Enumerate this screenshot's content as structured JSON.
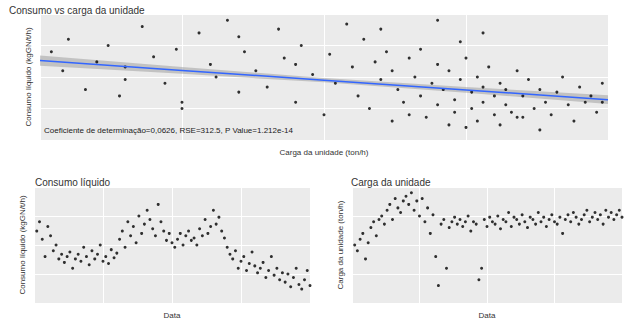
{
  "chart_data": [
    {
      "type": "scatter",
      "title": "Consumo vs carga da unidade",
      "x_label": "Carga da unidade (ton/h)",
      "y_label": "Consumo líquido (kgGN/t/h)",
      "annotation": "Coeficiente de determinação=0,0626, RSE=312.5, P Value=1.212e-14",
      "x": [
        2,
        4,
        5,
        8,
        10,
        12,
        14,
        15,
        18,
        20,
        22,
        24,
        25,
        28,
        30,
        31,
        33,
        35,
        36,
        38,
        40,
        42,
        43,
        45,
        46,
        48,
        50,
        51,
        52,
        54,
        55,
        56,
        57,
        58,
        59,
        60,
        61,
        62,
        62,
        63,
        64,
        65,
        65,
        66,
        67,
        67,
        68,
        69,
        70,
        70,
        71,
        72,
        72,
        73,
        73,
        74,
        75,
        75,
        76,
        76,
        77,
        77,
        78,
        78,
        79,
        80,
        80,
        81,
        81,
        82,
        82,
        83,
        84,
        84,
        85,
        86,
        87,
        88,
        89,
        90,
        91,
        92,
        93,
        94,
        95,
        96,
        97,
        98,
        99,
        99,
        15,
        25,
        35,
        45,
        60,
        70,
        74,
        78,
        85,
        88
      ],
      "values": [
        70,
        55,
        80,
        40,
        62,
        75,
        35,
        58,
        90,
        66,
        45,
        72,
        30,
        85,
        60,
        50,
        95,
        38,
        70,
        55,
        42,
        88,
        65,
        30,
        75,
        52,
        20,
        68,
        45,
        92,
        58,
        35,
        80,
        25,
        62,
        48,
        70,
        15,
        55,
        40,
        30,
        65,
        20,
        50,
        35,
        72,
        18,
        45,
        28,
        60,
        40,
        12,
        55,
        32,
        22,
        48,
        65,
        10,
        38,
        25,
        50,
        15,
        42,
        30,
        58,
        20,
        35,
        45,
        12,
        28,
        40,
        22,
        55,
        18,
        35,
        48,
        25,
        40,
        30,
        20,
        38,
        50,
        28,
        15,
        42,
        30,
        35,
        22,
        45,
        30,
        48,
        25,
        82,
        60,
        88,
        95,
        78,
        85,
        18,
        8
      ],
      "color": "#000000",
      "marker": "circle",
      "fit": {
        "x": [
          0,
          25,
          50,
          75,
          100
        ],
        "values": [
          63,
          55.25,
          47.5,
          39.75,
          32
        ],
        "lower": [
          59,
          52.5,
          45.8,
          37.5,
          28.5
        ],
        "upper": [
          67,
          58,
          49.2,
          42,
          35.5
        ],
        "color": "#3366ff",
        "band_color": "#999999"
      },
      "xlim": [
        0,
        100
      ],
      "ylim": [
        0,
        100
      ],
      "xticks": [
        0,
        25,
        50,
        75,
        100
      ],
      "yticks": [
        0,
        25,
        50,
        75,
        100
      ],
      "grid": true,
      "tick_labels": false
    },
    {
      "type": "scatter",
      "title": "Consumo líquido",
      "x_label": "Data",
      "y_label": "Consumo líquido (kgGN/t/h)",
      "x": [
        1,
        2,
        3,
        4,
        5,
        6,
        7,
        8,
        9,
        10,
        11,
        12,
        13,
        14,
        15,
        16,
        17,
        18,
        19,
        20,
        21,
        22,
        23,
        24,
        25,
        26,
        27,
        28,
        29,
        30,
        31,
        32,
        33,
        34,
        35,
        36,
        37,
        38,
        39,
        40,
        41,
        42,
        43,
        44,
        45,
        46,
        47,
        48,
        49,
        50,
        51,
        52,
        53,
        54,
        55,
        56,
        57,
        58,
        59,
        60,
        61,
        62,
        63,
        64,
        65,
        66,
        67,
        68,
        69,
        70,
        71,
        72,
        73,
        74,
        75,
        76,
        77,
        78,
        79,
        80,
        81,
        82,
        83,
        84,
        85,
        86,
        87,
        88,
        89,
        90,
        91,
        92,
        93,
        94,
        95,
        96,
        97,
        98,
        99,
        100
      ],
      "values": [
        62,
        70,
        55,
        40,
        66,
        58,
        45,
        50,
        38,
        42,
        35,
        40,
        44,
        30,
        38,
        42,
        36,
        48,
        40,
        33,
        45,
        38,
        42,
        50,
        36,
        40,
        34,
        46,
        39,
        43,
        55,
        62,
        48,
        70,
        58,
        66,
        52,
        75,
        60,
        68,
        80,
        72,
        64,
        58,
        85,
        70,
        62,
        54,
        60,
        52,
        48,
        55,
        60,
        50,
        58,
        62,
        54,
        56,
        50,
        64,
        58,
        72,
        60,
        66,
        80,
        68,
        74,
        62,
        56,
        48,
        42,
        38,
        45,
        30,
        36,
        40,
        28,
        34,
        44,
        32,
        26,
        30,
        35,
        22,
        28,
        40,
        24,
        30,
        20,
        26,
        18,
        25,
        14,
        22,
        30,
        16,
        12,
        20,
        28,
        15
      ],
      "color": "#000000",
      "marker": "circle",
      "xlim": [
        0,
        100
      ],
      "ylim": [
        0,
        100
      ],
      "xticks": [
        0,
        25,
        50,
        75,
        100
      ],
      "yticks": [
        0,
        25,
        50,
        75,
        100
      ],
      "grid": true,
      "tick_labels": false
    },
    {
      "type": "scatter",
      "title": "Carga da unidade",
      "x_label": "Data",
      "y_label": "Carga da unidade (ton/h)",
      "x": [
        1,
        2,
        3,
        4,
        5,
        6,
        7,
        8,
        9,
        10,
        11,
        12,
        13,
        14,
        15,
        16,
        17,
        18,
        19,
        20,
        21,
        22,
        23,
        24,
        25,
        26,
        27,
        28,
        29,
        30,
        31,
        32,
        33,
        34,
        35,
        36,
        37,
        38,
        39,
        40,
        41,
        42,
        43,
        44,
        45,
        46,
        47,
        48,
        49,
        50,
        51,
        52,
        53,
        54,
        55,
        56,
        57,
        58,
        59,
        60,
        61,
        62,
        63,
        64,
        65,
        66,
        67,
        68,
        69,
        70,
        71,
        72,
        73,
        74,
        75,
        76,
        77,
        78,
        79,
        80,
        81,
        82,
        83,
        84,
        85,
        86,
        87,
        88,
        89,
        90,
        91,
        92,
        93,
        94,
        95,
        96,
        97,
        98,
        99,
        100
      ],
      "values": [
        50,
        45,
        55,
        60,
        38,
        52,
        65,
        70,
        58,
        72,
        75,
        68,
        80,
        85,
        72,
        90,
        82,
        78,
        88,
        92,
        85,
        95,
        80,
        88,
        75,
        90,
        70,
        82,
        60,
        76,
        40,
        15,
        68,
        72,
        30,
        65,
        70,
        74,
        68,
        72,
        66,
        70,
        75,
        62,
        70,
        68,
        20,
        30,
        72,
        66,
        74,
        70,
        68,
        75,
        64,
        72,
        70,
        78,
        66,
        74,
        72,
        68,
        76,
        70,
        65,
        74,
        72,
        68,
        78,
        70,
        74,
        66,
        72,
        76,
        70,
        68,
        74,
        60,
        72,
        76,
        70,
        78,
        74,
        68,
        72,
        76,
        80,
        70,
        74,
        78,
        72,
        76,
        68,
        80,
        74,
        78,
        72,
        76,
        80,
        74
      ],
      "color": "#000000",
      "marker": "circle",
      "xlim": [
        0,
        100
      ],
      "ylim": [
        0,
        100
      ],
      "xticks": [
        0,
        25,
        50,
        75,
        100
      ],
      "yticks": [
        0,
        25,
        50,
        75,
        100
      ],
      "grid": true,
      "tick_labels": false
    }
  ]
}
